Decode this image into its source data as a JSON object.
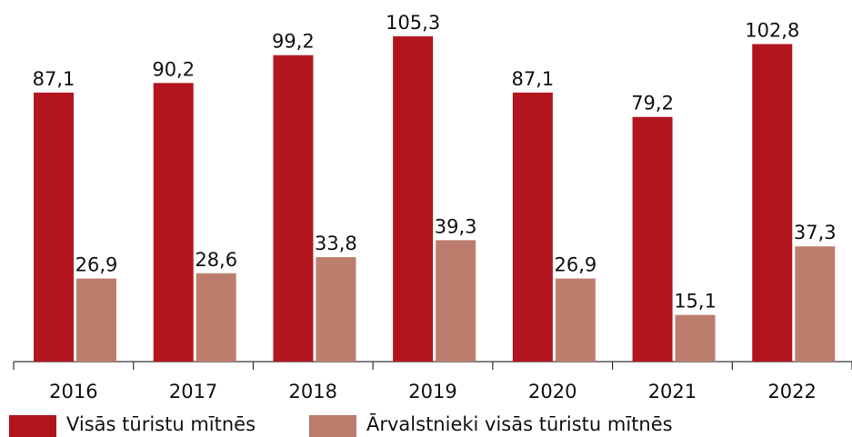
{
  "chart_data": {
    "type": "bar",
    "categories": [
      "2016",
      "2017",
      "2018",
      "2019",
      "2020",
      "2021",
      "2022"
    ],
    "series": [
      {
        "name": "Visās tūristu mītnēs",
        "color": "#b3151f",
        "values": [
          87.1,
          90.2,
          99.2,
          105.3,
          87.1,
          79.2,
          102.8
        ],
        "value_labels": [
          "87,1",
          "90,2",
          "99,2",
          "105,3",
          "87,1",
          "79,2",
          "102,8"
        ]
      },
      {
        "name": "Ārvalstnieki visās tūristu mītnēs",
        "color": "#bd7d6c",
        "values": [
          26.9,
          28.6,
          33.8,
          39.3,
          26.9,
          15.1,
          37.3
        ],
        "value_labels": [
          "26,9",
          "28,6",
          "33,8",
          "39,3",
          "26,9",
          "15,1",
          "37,3"
        ]
      }
    ],
    "legend": "bottom-left"
  }
}
